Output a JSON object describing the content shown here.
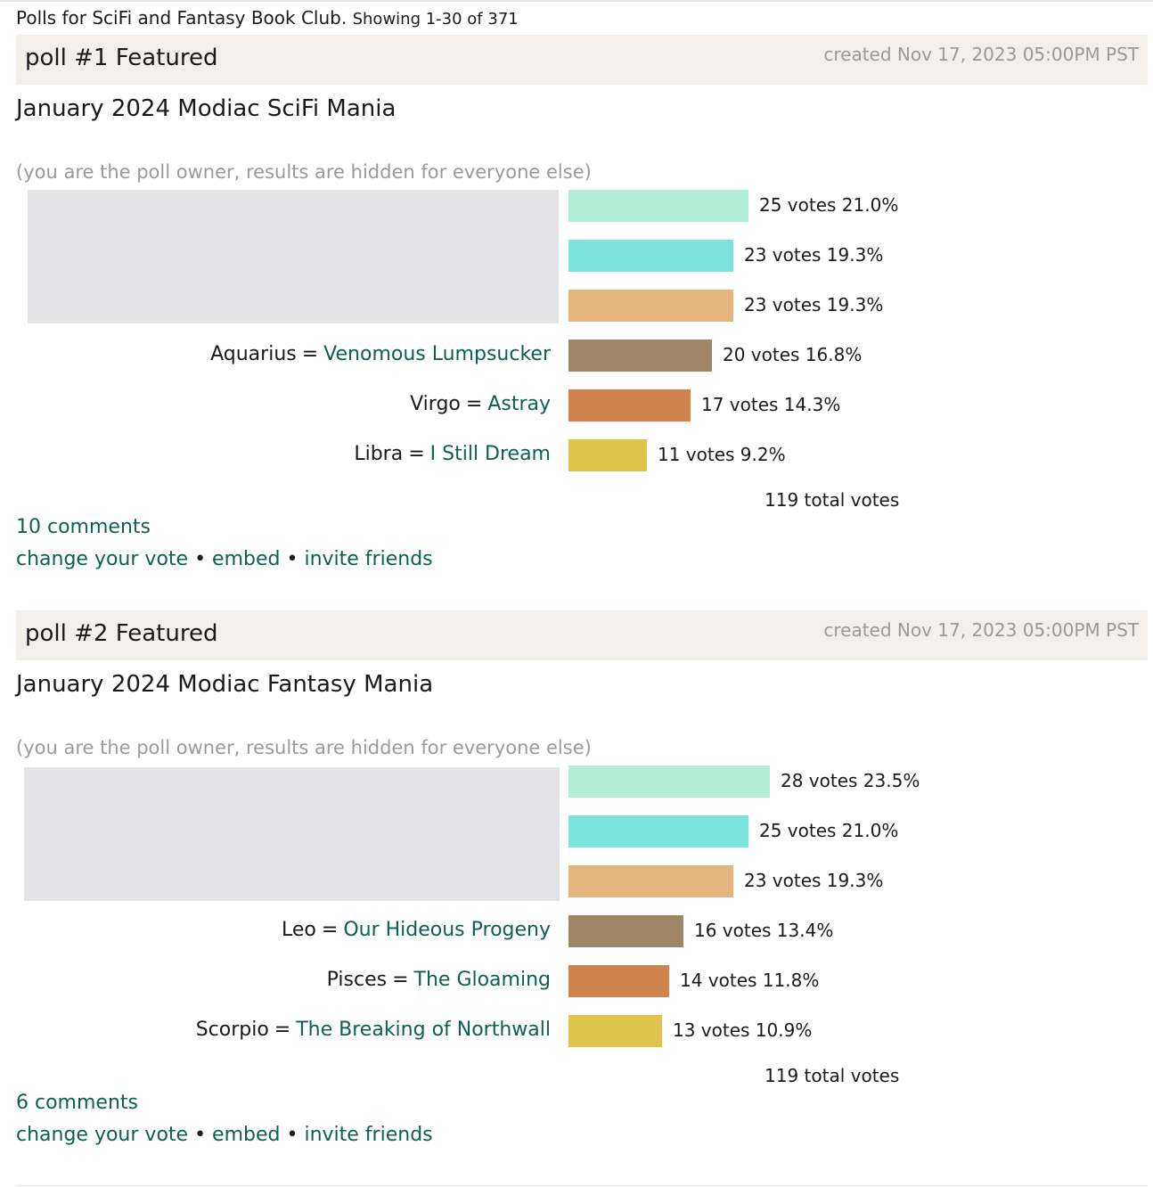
{
  "header": {
    "title": "Polls for SciFi and Fantasy Book Club.",
    "showing": "Showing 1-30 of 371"
  },
  "polls": [
    {
      "label": "poll #1 Featured",
      "created": "created Nov 17, 2023 05:00PM PST",
      "title": "January 2024 Modiac SciFi Mania",
      "owner_note": "(you are the poll owner, results are hidden for everyone else)",
      "results": [
        {
          "sign": "",
          "book": "",
          "votes_text": "25 votes 21.0%",
          "percent": 21.0,
          "color": "#b3eed8"
        },
        {
          "sign": "",
          "book": "",
          "votes_text": "23 votes 19.3%",
          "percent": 19.3,
          "color": "#7de4dc"
        },
        {
          "sign": "",
          "book": "",
          "votes_text": "23 votes 19.3%",
          "percent": 19.3,
          "color": "#e4b67e"
        },
        {
          "sign": "Aquarius",
          "book": "Venomous Lumpsucker",
          "votes_text": "20 votes 16.8%",
          "percent": 16.8,
          "color": "#9d8566"
        },
        {
          "sign": "Virgo",
          "book": "Astray",
          "votes_text": "17 votes 14.3%",
          "percent": 14.3,
          "color": "#cf844e"
        },
        {
          "sign": "Libra",
          "book": "I Still Dream",
          "votes_text": "11 votes 9.2%",
          "percent": 9.2,
          "color": "#dfc44c"
        }
      ],
      "total": "119 total votes",
      "comments": "10 comments",
      "actions": {
        "change": "change your vote",
        "embed": "embed",
        "invite": "invite friends",
        "separator": "•"
      }
    },
    {
      "label": "poll #2 Featured",
      "created": "created Nov 17, 2023 05:00PM PST",
      "title": "January 2024 Modiac Fantasy Mania",
      "owner_note": "(you are the poll owner, results are hidden for everyone else)",
      "results": [
        {
          "sign": "",
          "book": "",
          "votes_text": "28 votes 23.5%",
          "percent": 23.5,
          "color": "#b3eed8"
        },
        {
          "sign": "",
          "book": "",
          "votes_text": "25 votes 21.0%",
          "percent": 21.0,
          "color": "#7de4dc"
        },
        {
          "sign": "",
          "book": "",
          "votes_text": "23 votes 19.3%",
          "percent": 19.3,
          "color": "#e4b67e"
        },
        {
          "sign": "Leo",
          "book": "Our Hideous Progeny",
          "votes_text": "16 votes 13.4%",
          "percent": 13.4,
          "color": "#9d8566"
        },
        {
          "sign": "Pisces",
          "book": "The Gloaming",
          "votes_text": "14 votes 11.8%",
          "percent": 11.8,
          "color": "#cf844e"
        },
        {
          "sign": "Scorpio",
          "book": "The Breaking of Northwall",
          "votes_text": "13 votes 10.9%",
          "percent": 10.9,
          "color": "#dfc44c"
        }
      ],
      "total": "119 total votes",
      "comments": "6 comments",
      "actions": {
        "change": "change your vote",
        "embed": "embed",
        "invite": "invite friends",
        "separator": "•"
      }
    }
  ]
}
